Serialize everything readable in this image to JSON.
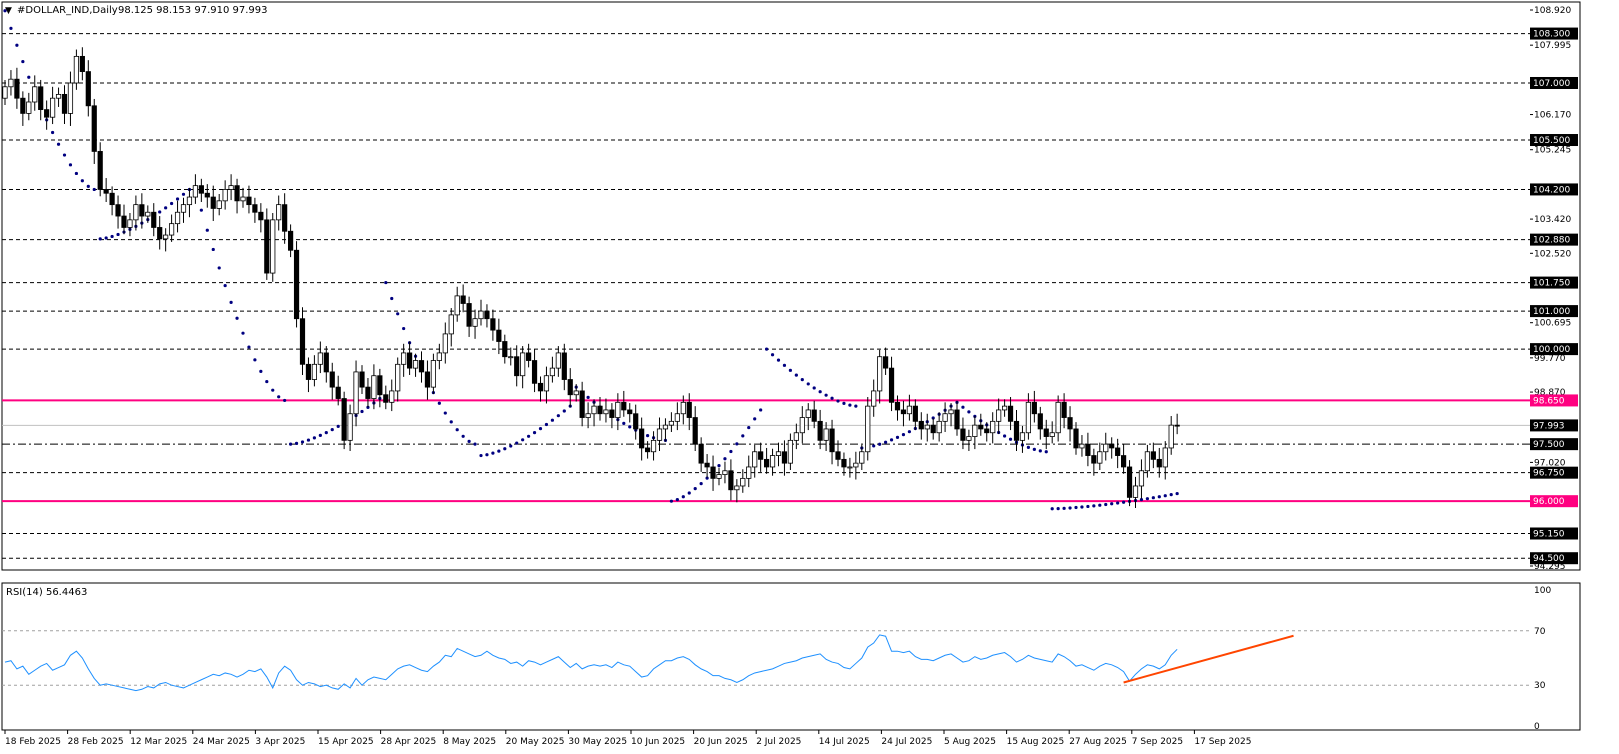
{
  "header": {
    "symbol": "#DOLLAR_IND,Daily",
    "ohlc": "98.125 98.153 97.910 97.993"
  },
  "indicator": {
    "label": "RSI(14) 56.4463",
    "ticks": [
      100,
      70,
      30,
      0
    ],
    "levels": [
      70,
      30
    ]
  },
  "colors": {
    "candle_up": "#ffffff",
    "candle_down": "#000000",
    "sar_dots": "#000080",
    "resistance_line": "#ff0080",
    "rsi_line": "#1e90ff",
    "rsi_trendline": "#ff4500",
    "grid": "#000000"
  },
  "chart_data": {
    "type": "candlestick",
    "x_tick_labels": [
      "18 Feb 2025",
      "28 Feb 2025",
      "12 Mar 2025",
      "24 Mar 2025",
      "3 Apr 2025",
      "15 Apr 2025",
      "28 Apr 2025",
      "8 May 2025",
      "20 May 2025",
      "30 May 2025",
      "10 Jun 2025",
      "20 Jun 2025",
      "2 Jul 2025",
      "14 Jul 2025",
      "24 Jul 2025",
      "5 Aug 2025",
      "15 Aug 2025",
      "27 Aug 2025",
      "7 Sep 2025",
      "17 Sep 2025"
    ],
    "y_axis": {
      "min": 94.295,
      "max": 108.92,
      "tick_labels": [
        "108.920",
        "107.995",
        "106.170",
        "105.245",
        "103.420",
        "102.520",
        "100.695",
        "99.770",
        "98.870",
        "97.020",
        "95.150",
        "94.295"
      ]
    },
    "level_lines": [
      {
        "value": 108.3,
        "label": "108.300",
        "style": "dashed"
      },
      {
        "value": 107.0,
        "label": "107.000",
        "style": "dashed"
      },
      {
        "value": 105.5,
        "label": "105.500",
        "style": "dashed"
      },
      {
        "value": 104.2,
        "label": "104.200",
        "style": "dashed"
      },
      {
        "value": 102.88,
        "label": "102.880",
        "style": "dashed"
      },
      {
        "value": 101.75,
        "label": "101.750",
        "style": "dashed"
      },
      {
        "value": 101.0,
        "label": "101.000",
        "style": "dashed"
      },
      {
        "value": 100.0,
        "label": "100.000",
        "style": "dashed"
      },
      {
        "value": 98.65,
        "label": "98.650",
        "style": "pink"
      },
      {
        "value": 97.993,
        "label": "97.993",
        "style": "current"
      },
      {
        "value": 97.5,
        "label": "97.500",
        "style": "dashdot"
      },
      {
        "value": 96.75,
        "label": "96.750",
        "style": "dashed"
      },
      {
        "value": 96.0,
        "label": "96.000",
        "style": "pink"
      },
      {
        "value": 95.15,
        "label": "95.150",
        "style": "dashed"
      },
      {
        "value": 94.5,
        "label": "94.500",
        "style": "dashed"
      }
    ],
    "candles_close": [
      106.9,
      107.1,
      106.6,
      106.2,
      106.5,
      106.9,
      106.3,
      106.1,
      106.6,
      106.7,
      106.2,
      107.0,
      107.7,
      107.3,
      106.4,
      105.2,
      104.2,
      104.1,
      103.8,
      103.5,
      103.2,
      103.4,
      103.8,
      103.5,
      103.6,
      103.2,
      102.9,
      103.0,
      103.3,
      103.6,
      103.8,
      104.0,
      104.3,
      104.1,
      104.0,
      103.7,
      103.9,
      104.2,
      104.3,
      103.9,
      104.0,
      103.8,
      103.6,
      103.4,
      102.0,
      103.4,
      103.8,
      103.1,
      102.6,
      100.8,
      99.6,
      99.2,
      99.6,
      99.9,
      99.4,
      99.0,
      98.7,
      97.6,
      98.3,
      99.4,
      99.0,
      98.7,
      99.3,
      98.8,
      98.6,
      98.9,
      99.6,
      99.9,
      99.5,
      99.7,
      99.4,
      99.0,
      99.7,
      99.9,
      100.4,
      100.9,
      101.4,
      101.2,
      100.6,
      100.8,
      101.0,
      100.8,
      100.5,
      100.2,
      99.8,
      99.8,
      99.3,
      99.9,
      99.7,
      99.1,
      98.9,
      99.3,
      99.5,
      99.9,
      99.2,
      98.8,
      98.9,
      98.2,
      98.3,
      98.5,
      98.3,
      98.4,
      98.2,
      98.6,
      98.4,
      98.3,
      97.9,
      97.4,
      97.3,
      97.6,
      97.9,
      98.0,
      98.1,
      98.3,
      98.6,
      98.2,
      97.5,
      97.0,
      96.9,
      96.6,
      96.7,
      96.8,
      96.3,
      96.4,
      96.6,
      96.9,
      97.3,
      97.1,
      96.9,
      97.2,
      97.3,
      97.0,
      97.6,
      97.8,
      98.2,
      98.4,
      98.1,
      97.6,
      97.9,
      97.3,
      97.1,
      96.9,
      96.9,
      97.0,
      97.3,
      98.5,
      98.9,
      99.8,
      99.5,
      98.6,
      98.4,
      98.3,
      98.5,
      98.1,
      97.9,
      98.0,
      97.8,
      98.1,
      98.3,
      98.4,
      97.9,
      97.6,
      97.7,
      98.0,
      97.9,
      97.8,
      98.1,
      98.4,
      98.5,
      98.1,
      97.6,
      97.8,
      98.6,
      98.3,
      97.9,
      97.7,
      97.8,
      98.6,
      98.2,
      97.9,
      97.4,
      97.5,
      97.2,
      97.0,
      97.3,
      97.5,
      97.4,
      97.2,
      96.9,
      96.1,
      96.4,
      96.8,
      97.3,
      97.1,
      96.9,
      97.4,
      98.0,
      97.993
    ],
    "sar_phases": [
      {
        "from": 108.9,
        "to": 104.2,
        "above": true
      },
      {
        "from": 102.9,
        "to": 104.2,
        "above": false
      },
      {
        "from": 104.2,
        "to": 98.65,
        "above": true
      },
      {
        "from": 97.5,
        "to": 98.7,
        "above": false
      },
      {
        "from": 101.75,
        "to": 97.5,
        "above": true
      },
      {
        "from": 97.2,
        "to": 98.5,
        "above": false
      },
      {
        "from": 99.0,
        "to": 97.6,
        "above": true
      },
      {
        "from": 96.0,
        "to": 98.4,
        "above": false
      },
      {
        "from": 100.0,
        "to": 98.5,
        "above": true
      },
      {
        "from": 97.4,
        "to": 98.5,
        "above": false
      },
      {
        "from": 98.6,
        "to": 97.3,
        "above": true
      },
      {
        "from": 95.8,
        "to": 96.2,
        "above": false
      }
    ],
    "rsi_values": [
      47,
      48,
      42,
      44,
      38,
      41,
      44,
      46,
      41,
      43,
      45,
      52,
      55,
      50,
      42,
      35,
      30,
      31,
      30,
      29,
      28,
      27,
      26,
      27,
      29,
      28,
      31,
      32,
      30,
      29,
      28,
      30,
      32,
      34,
      36,
      38,
      37,
      39,
      38,
      36,
      38,
      41,
      40,
      42,
      36,
      28,
      39,
      44,
      41,
      34,
      30,
      32,
      31,
      29,
      30,
      28,
      27,
      31,
      28,
      35,
      30,
      34,
      36,
      35,
      34,
      38,
      42,
      44,
      45,
      43,
      41,
      40,
      44,
      47,
      52,
      51,
      57,
      55,
      53,
      51,
      52,
      55,
      52,
      50,
      49,
      46,
      47,
      44,
      48,
      47,
      45,
      47,
      49,
      51,
      47,
      43,
      46,
      42,
      44,
      45,
      44,
      45,
      43,
      47,
      45,
      44,
      40,
      36,
      37,
      42,
      45,
      48,
      48,
      50,
      51,
      49,
      45,
      42,
      40,
      37,
      37,
      35,
      34,
      32,
      34,
      37,
      39,
      40,
      41,
      42,
      44,
      46,
      47,
      48,
      50,
      51,
      52,
      53,
      49,
      47,
      46,
      43,
      42,
      46,
      50,
      58,
      61,
      67,
      66,
      55,
      55,
      54,
      55,
      51,
      49,
      49,
      48,
      50,
      52,
      53,
      50,
      47,
      48,
      51,
      49,
      50,
      52,
      53,
      54,
      51,
      47,
      49,
      52,
      50,
      49,
      48,
      47,
      53,
      51,
      48,
      44,
      45,
      43,
      41,
      44,
      46,
      45,
      43,
      40,
      33,
      38,
      42,
      45,
      44,
      42,
      45,
      52,
      56.4
    ],
    "rsi_trendline": {
      "from_index": 188,
      "from_value": 32,
      "to_index": 209,
      "to_value": 59
    }
  }
}
